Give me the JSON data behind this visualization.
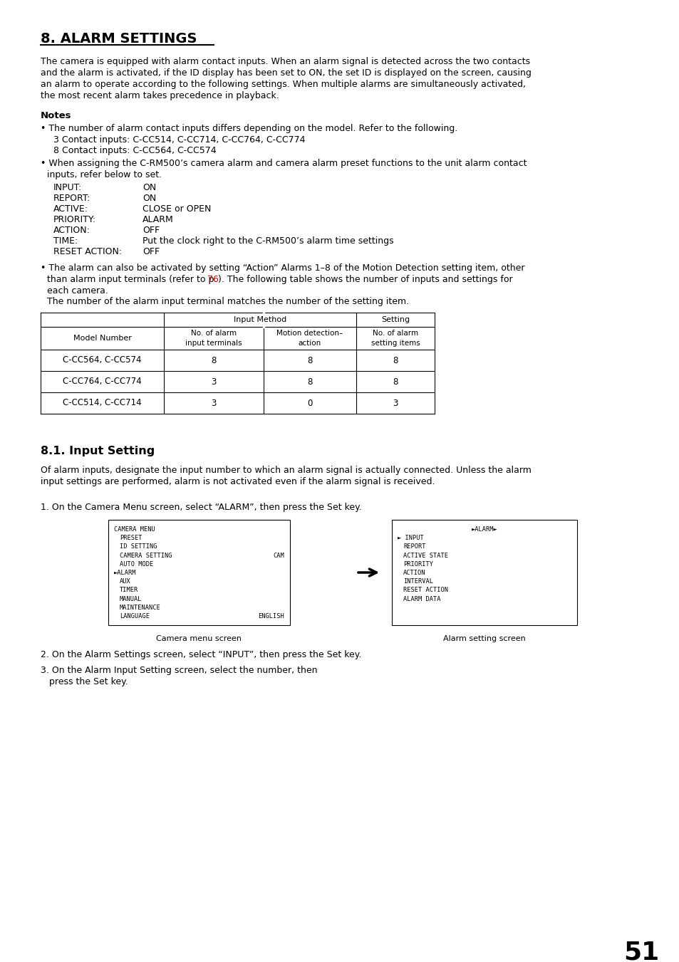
{
  "title": "8. ALARM SETTINGS",
  "bg_color": "#ffffff",
  "text_color": "#000000",
  "red_color": "#cc0000",
  "page_number": "51",
  "intro_lines": [
    "The camera is equipped with alarm contact inputs. When an alarm signal is detected across the two contacts",
    "and the alarm is activated, if the ID display has been set to ON, the set ID is displayed on the screen, causing",
    "an alarm to operate according to the following settings. When multiple alarms are simultaneously activated,",
    "the most recent alarm takes precedence in playback."
  ],
  "notes_header": "Notes",
  "bullet1": "• The number of alarm contact inputs differs depending on the model. Refer to the following.",
  "contact3": "3 Contact inputs: C-CC514, C-CC714, C-CC764, C-CC774",
  "contact8": "8 Contact inputs: C-CC564, C-CC574",
  "bullet2_l1": "• When assigning the C-RM500’s camera alarm and camera alarm preset functions to the unit alarm contact",
  "bullet2_l2": "inputs, refer below to set.",
  "settings": [
    [
      "INPUT:",
      "ON"
    ],
    [
      "REPORT:",
      "ON"
    ],
    [
      "ACTIVE:",
      "CLOSE or OPEN"
    ],
    [
      "PRIORITY:",
      "ALARM"
    ],
    [
      "ACTION:",
      "OFF"
    ],
    [
      "TIME:",
      "Put the clock right to the C-RM500’s alarm time settings"
    ],
    [
      "RESET ACTION:",
      "OFF"
    ]
  ],
  "bullet3_pre": "• The alarm can also be activated by setting “Action” Alarms 1–8 of the Motion Detection setting item, other",
  "bullet3_l2a": "than alarm input terminals (refer to p. ",
  "bullet3_ref": "76",
  "bullet3_l2b": "). The following table shows the number of inputs and settings for",
  "bullet3_l3": "each camera.",
  "bullet3_l4": "The number of the alarm input terminal matches the number of the setting item.",
  "table_rows": [
    [
      "C-CC564, C-CC574",
      "8",
      "8",
      "8"
    ],
    [
      "C-CC764, C-CC774",
      "3",
      "8",
      "8"
    ],
    [
      "C-CC514, C-CC714",
      "3",
      "0",
      "3"
    ]
  ],
  "section81_title": "8.1. Input Setting",
  "section81_lines": [
    "Of alarm inputs, designate the input number to which an alarm signal is actually connected. Unless the alarm",
    "input settings are performed, alarm is not activated even if the alarm signal is received."
  ],
  "step1": "1. On the Camera Menu screen, select “ALARM”, then press the Set key.",
  "camera_menu_label": "Camera menu screen",
  "alarm_menu_label": "Alarm setting screen",
  "step2": "2. On the Alarm Settings screen, select “INPUT”, then press the Set key.",
  "step3_l1": "3. On the Alarm Input Setting screen, select the number, then",
  "step3_l2": "   press the Set key."
}
